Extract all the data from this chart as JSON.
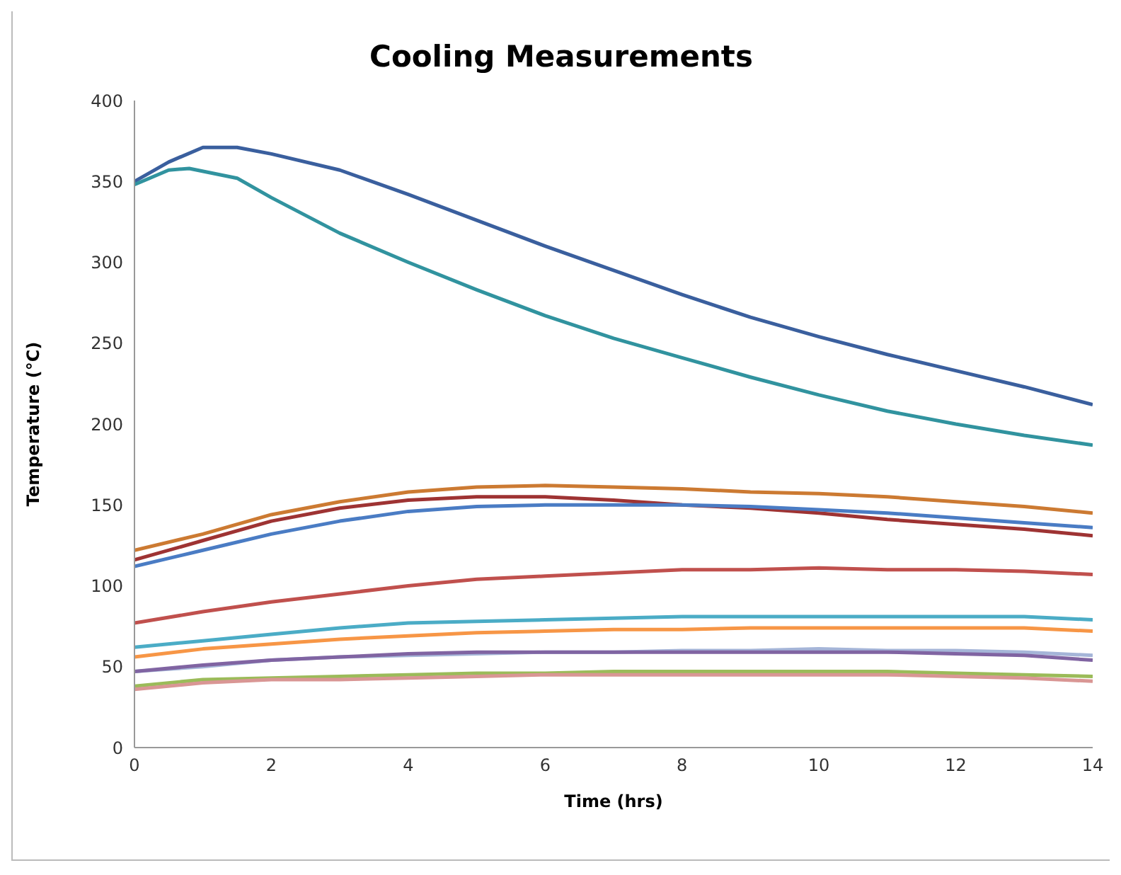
{
  "chart_data": {
    "type": "line",
    "title": "Cooling Measurements",
    "xlabel": "Time (hrs)",
    "ylabel": "Temperature (°C)",
    "xlim": [
      0,
      14
    ],
    "xticks": [
      0,
      2,
      4,
      6,
      8,
      10,
      12,
      14
    ],
    "ylim": [
      0,
      400
    ],
    "yticks": [
      0,
      50,
      100,
      150,
      200,
      250,
      300,
      350,
      400
    ],
    "grid": false,
    "legend": false,
    "marker": "none",
    "line_style": "solid",
    "series": [
      {
        "color": "#3a5f9e",
        "x": [
          0,
          0.5,
          1,
          1.5,
          2,
          3,
          4,
          5,
          6,
          7,
          8,
          9,
          10,
          11,
          12,
          13,
          14
        ],
        "values": [
          350,
          362,
          371,
          371,
          367,
          357,
          342,
          326,
          310,
          295,
          280,
          266,
          254,
          243,
          233,
          223,
          212
        ]
      },
      {
        "color": "#31939f",
        "x": [
          0,
          0.5,
          0.8,
          1.5,
          2,
          3,
          4,
          5,
          6,
          7,
          8,
          9,
          10,
          11,
          12,
          13,
          14
        ],
        "values": [
          348,
          357,
          358,
          352,
          340,
          318,
          300,
          283,
          267,
          253,
          241,
          229,
          218,
          208,
          200,
          193,
          187
        ]
      },
      {
        "color": "#cc7a32",
        "x": [
          0,
          1,
          2,
          3,
          4,
          5,
          6,
          7,
          8,
          9,
          10,
          11,
          12,
          13,
          14
        ],
        "values": [
          122,
          132,
          144,
          152,
          158,
          161,
          162,
          161,
          160,
          158,
          157,
          155,
          152,
          149,
          145
        ]
      },
      {
        "color": "#9e3333",
        "x": [
          0,
          1,
          2,
          3,
          4,
          5,
          6,
          7,
          8,
          9,
          10,
          11,
          12,
          13,
          14
        ],
        "values": [
          116,
          128,
          140,
          148,
          153,
          155,
          155,
          153,
          150,
          148,
          145,
          141,
          138,
          135,
          131
        ]
      },
      {
        "color": "#4a7cc4",
        "x": [
          0,
          1,
          2,
          3,
          4,
          5,
          6,
          7,
          8,
          9,
          10,
          11,
          12,
          13,
          14
        ],
        "values": [
          112,
          122,
          132,
          140,
          146,
          149,
          150,
          150,
          150,
          149,
          147,
          145,
          142,
          139,
          136
        ]
      },
      {
        "color": "#c0504d",
        "x": [
          0,
          1,
          2,
          3,
          4,
          5,
          6,
          7,
          8,
          9,
          10,
          11,
          12,
          13,
          14
        ],
        "values": [
          77,
          84,
          90,
          95,
          100,
          104,
          106,
          108,
          110,
          110,
          111,
          110,
          110,
          109,
          107
        ]
      },
      {
        "color": "#4bacc6",
        "x": [
          0,
          1,
          2,
          3,
          4,
          5,
          6,
          7,
          8,
          9,
          10,
          11,
          12,
          13,
          14
        ],
        "values": [
          62,
          66,
          70,
          74,
          77,
          78,
          79,
          80,
          81,
          81,
          81,
          81,
          81,
          81,
          79
        ]
      },
      {
        "color": "#f79646",
        "x": [
          0,
          1,
          2,
          3,
          4,
          5,
          6,
          7,
          8,
          9,
          10,
          11,
          12,
          13,
          14
        ],
        "values": [
          56,
          61,
          64,
          67,
          69,
          71,
          72,
          73,
          73,
          74,
          74,
          74,
          74,
          74,
          72
        ]
      },
      {
        "color": "#a5b5d8",
        "x": [
          0,
          1,
          2,
          3,
          4,
          5,
          6,
          7,
          8,
          9,
          10,
          11,
          12,
          13,
          14
        ],
        "values": [
          47,
          50,
          54,
          56,
          57,
          58,
          59,
          59,
          60,
          60,
          61,
          60,
          60,
          59,
          57
        ]
      },
      {
        "color": "#8064a2",
        "x": [
          0,
          1,
          2,
          3,
          4,
          5,
          6,
          7,
          8,
          9,
          10,
          11,
          12,
          13,
          14
        ],
        "values": [
          47,
          51,
          54,
          56,
          58,
          59,
          59,
          59,
          59,
          59,
          59,
          59,
          58,
          57,
          54
        ]
      },
      {
        "color": "#9bbb59",
        "x": [
          0,
          1,
          2,
          3,
          4,
          5,
          6,
          7,
          8,
          9,
          10,
          11,
          12,
          13,
          14
        ],
        "values": [
          38,
          42,
          43,
          44,
          45,
          46,
          46,
          47,
          47,
          47,
          47,
          47,
          46,
          45,
          44
        ]
      },
      {
        "color": "#d99694",
        "x": [
          0,
          1,
          2,
          3,
          4,
          5,
          6,
          7,
          8,
          9,
          10,
          11,
          12,
          13,
          14
        ],
        "values": [
          36,
          40,
          42,
          42,
          43,
          44,
          45,
          45,
          45,
          45,
          45,
          45,
          44,
          43,
          41
        ]
      }
    ]
  }
}
